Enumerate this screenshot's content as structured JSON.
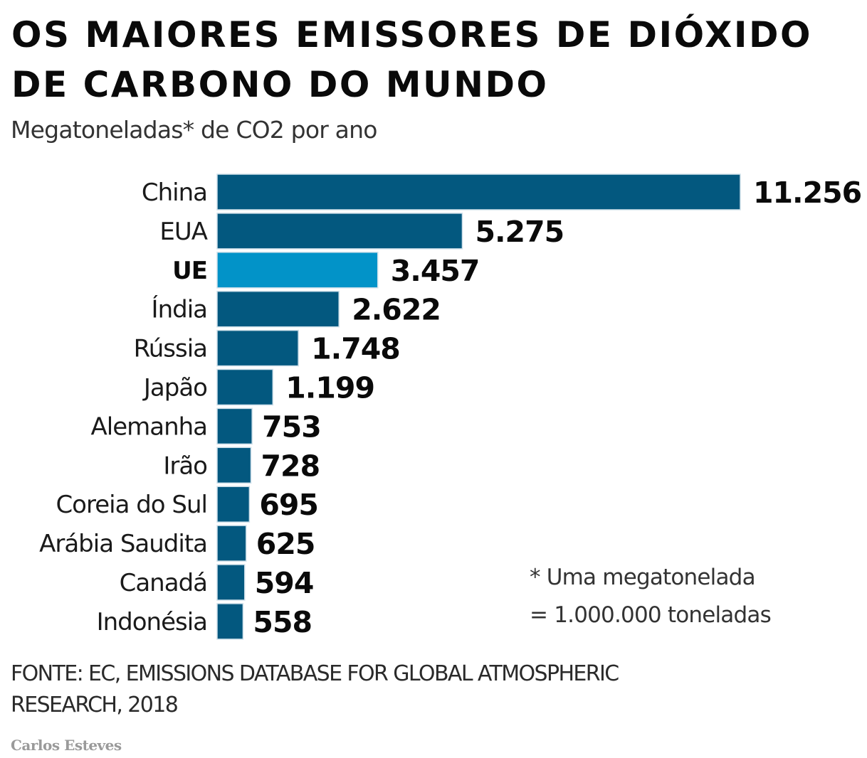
{
  "header": {
    "title_line1": "OS MAIORES EMISSORES DE DIÓXIDO",
    "title_line2": "DE CARBONO DO MUNDO",
    "subtitle": "Megatoneladas* de CO2 por ano"
  },
  "chart_data": {
    "type": "bar",
    "orientation": "horizontal",
    "title": "OS MAIORES EMISSORES DE DIÓXIDO DE CARBONO DO MUNDO",
    "subtitle": "Megatoneladas* de CO2 por ano",
    "xlabel": "",
    "ylabel": "",
    "unit": "Megatoneladas de CO2 por ano",
    "grid": false,
    "legend": "none",
    "xlim": [
      0,
      11256
    ],
    "categories": [
      "China",
      "EUA",
      "UE",
      "Índia",
      "Rússia",
      "Japão",
      "Alemanha",
      "Irão",
      "Coreia do Sul",
      "Arábia Saudita",
      "Canadá",
      "Indonésia"
    ],
    "values": [
      11256,
      5275,
      3457,
      2622,
      1748,
      1199,
      753,
      728,
      695,
      625,
      594,
      558
    ],
    "value_labels": [
      "11.256",
      "5.275",
      "3.457",
      "2.622",
      "1.748",
      "1.199",
      "753",
      "728",
      "695",
      "625",
      "594",
      "558"
    ],
    "highlight": [
      "UE"
    ],
    "colors": {
      "default": "#03587F",
      "highlight": "#0293C8"
    }
  },
  "footnote": {
    "line1": "* Uma megatonelada",
    "line2": "= 1.000.000 toneladas"
  },
  "source": {
    "line1": "FONTE: EC, EMISSIONS DATABASE FOR GLOBAL ATMOSPHERIC",
    "line2": "RESEARCH, 2018"
  },
  "credit": "Carlos Esteves"
}
